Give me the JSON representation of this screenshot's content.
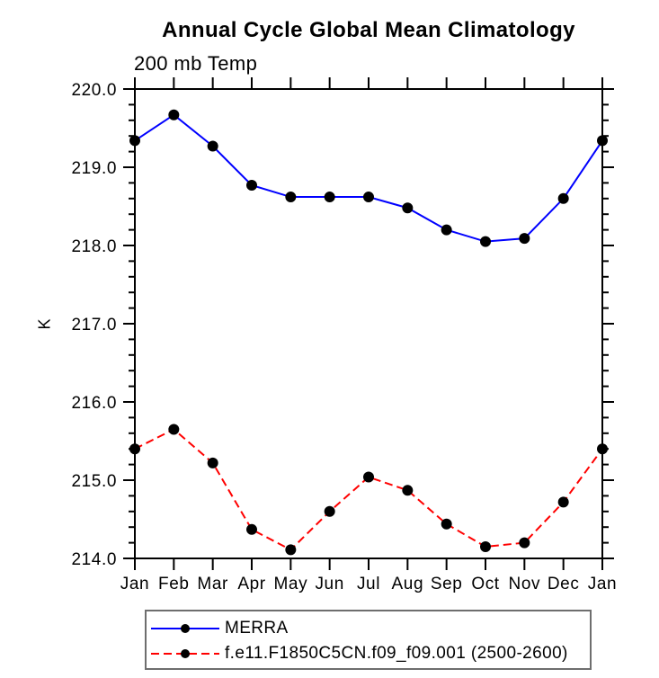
{
  "chart_data": {
    "type": "line",
    "title": "Annual Cycle Global Mean Climatology",
    "subtitle": "200 mb Temp",
    "ylabel": "K",
    "x_categories": [
      "Jan",
      "Feb",
      "Mar",
      "Apr",
      "May",
      "Jun",
      "Jul",
      "Aug",
      "Sep",
      "Oct",
      "Nov",
      "Dec",
      "Jan"
    ],
    "ylim": [
      214.0,
      220.0
    ],
    "ytick_values": [
      220.0,
      219.0,
      218.0,
      217.0,
      216.0,
      215.0,
      214.0
    ],
    "ytick_labels": [
      "220.0",
      "219.0",
      "218.0",
      "217.0",
      "216.0",
      "215.0",
      "214.0"
    ],
    "yminor_step": 0.2,
    "grid": "off",
    "legend_position": "bottom-left",
    "series": [
      {
        "name": "MERRA",
        "color": "#0000ff",
        "line_style": "solid",
        "marker": "filled-circle",
        "marker_color": "#000000",
        "values": [
          219.34,
          219.67,
          219.27,
          218.77,
          218.62,
          218.62,
          218.62,
          218.48,
          218.2,
          218.05,
          218.09,
          218.6,
          219.34
        ]
      },
      {
        "name": "f.e11.F1850C5CN.f09_f09.001 (2500-2600)",
        "color": "#ff0000",
        "line_style": "dashed",
        "marker": "filled-circle",
        "marker_color": "#000000",
        "values": [
          215.4,
          215.65,
          215.22,
          214.37,
          214.11,
          214.6,
          215.04,
          214.87,
          214.44,
          214.15,
          214.2,
          214.72,
          215.4
        ]
      }
    ],
    "colors": {
      "axis": "#000000",
      "background": "#ffffff",
      "legend_border": "#6e6e6e"
    }
  }
}
